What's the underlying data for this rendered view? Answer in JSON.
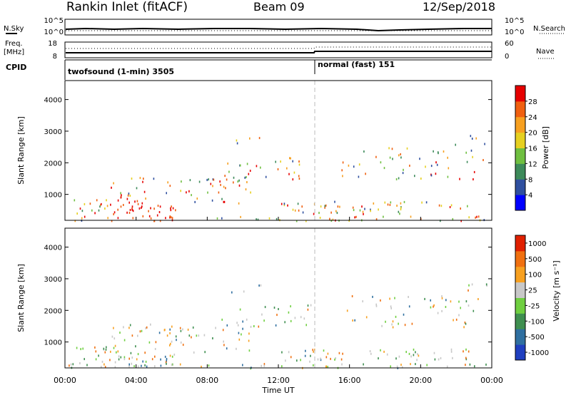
{
  "header": {
    "station": "Rankin Inlet (fitACF)",
    "beam": "Beam 09",
    "date": "12/Sep/2018"
  },
  "top_panels": {
    "nsky_label": "N.Sky",
    "nsky_ticks": [
      "10^5",
      "10^0"
    ],
    "nsearch_label": "N.Search",
    "nsearch_ticks": [
      "10^5",
      "10^0"
    ],
    "freq_label_line1": "Freq.",
    "freq_label_line2": "[MHz]",
    "freq_ticks": [
      "18",
      "8"
    ],
    "nave_label": "Nave",
    "nave_ticks": [
      "60",
      "0"
    ],
    "cpid_label": "CPID",
    "cpid_segments": [
      {
        "label": "twofsound (1-min) 3505",
        "start_hour": 0,
        "end_hour": 14
      },
      {
        "label": "normal (fast) 151",
        "start_hour": 14,
        "end_hour": 24
      }
    ]
  },
  "chart_data": [
    {
      "type": "heatmap",
      "title": "",
      "ylabel": "Slant Range [km]",
      "xlabel": "",
      "y_ticks": [
        "1000",
        "2000",
        "3000",
        "4000"
      ],
      "ylim": [
        180,
        4600
      ],
      "x_range_hours": [
        0,
        24
      ],
      "colorbar_label": "Power [dB]",
      "colorbar_ticks": [
        "4",
        "8",
        "12",
        "16",
        "20",
        "24",
        "28"
      ],
      "colorbar_colors": [
        "#0000ff",
        "#2f4f9f",
        "#3d8a5a",
        "#6fbf40",
        "#e6d020",
        "#f7a020",
        "#f06010",
        "#e60000"
      ],
      "colorbar_range": [
        0,
        30
      ]
    },
    {
      "type": "heatmap",
      "title": "",
      "ylabel": "Slant Range [km]",
      "xlabel": "Time UT",
      "y_ticks": [
        "1000",
        "2000",
        "3000",
        "4000"
      ],
      "ylim": [
        180,
        4600
      ],
      "x_tick_labels": [
        "00:00",
        "04:00",
        "08:00",
        "12:00",
        "16:00",
        "20:00",
        "00:00"
      ],
      "x_tick_hours": [
        0,
        4,
        8,
        12,
        16,
        20,
        24
      ],
      "x_range_hours": [
        0,
        24
      ],
      "colorbar_label": "Velocity [m s⁻¹]",
      "colorbar_ticks": [
        "1000",
        "500",
        "100",
        "25",
        "-25",
        "-100",
        "-500",
        "-1000"
      ],
      "colorbar_colors": [
        "#1f3fbf",
        "#2f6fa0",
        "#3f8f50",
        "#6fcf40",
        "#c8c8c8",
        "#f7a020",
        "#f07010",
        "#e02000"
      ]
    }
  ]
}
